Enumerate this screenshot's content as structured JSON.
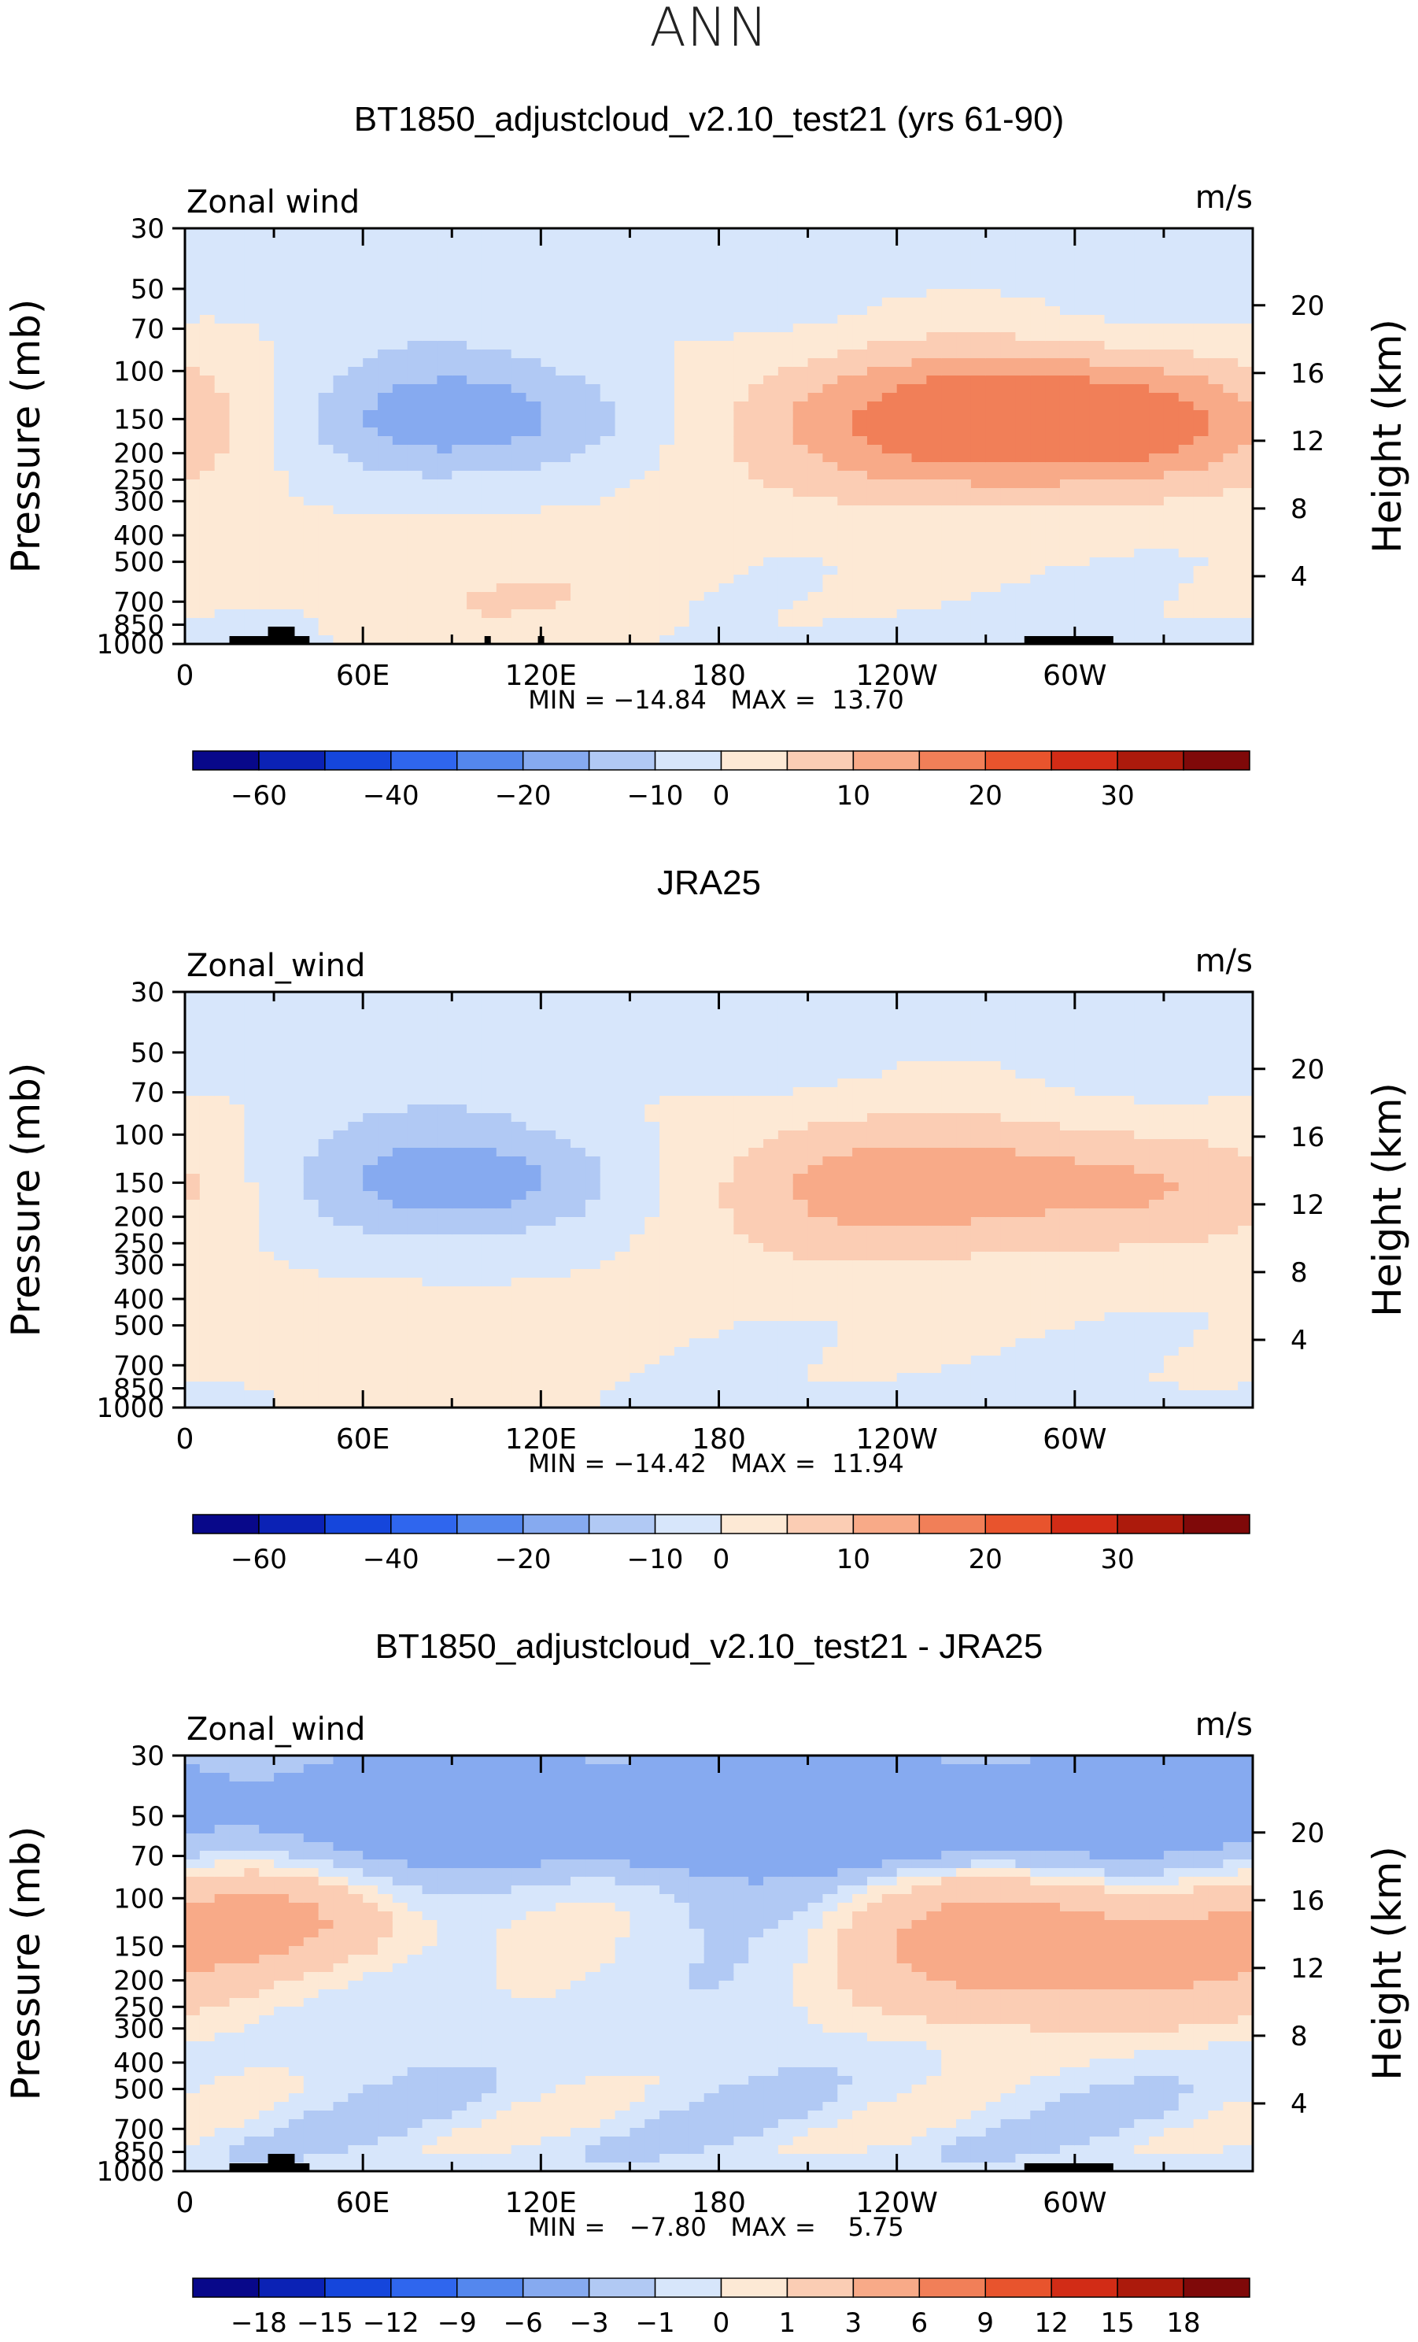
{
  "figure_title": "ANN",
  "panel_titles": [
    "BT1850_adjustcloud_v2.10_test21 (yrs 61-90)",
    "JRA25",
    "BT1850_adjustcloud_v2.10_test21 - JRA25"
  ],
  "colors": {
    "abs_levels": [
      "#08088a",
      "#0b22b5",
      "#1546dc",
      "#2f66ee",
      "#5487ee",
      "#86aaf0",
      "#b1c9f4",
      "#d7e6fb",
      "#fde9d5",
      "#fbcdb4",
      "#f8aa88",
      "#f17f58",
      "#e8542d",
      "#d22c16",
      "#ac1a0c",
      "#7f0909"
    ],
    "diff_levels": [
      "#08088a",
      "#0b22b5",
      "#1546dc",
      "#2f66ee",
      "#5487ee",
      "#86aaf0",
      "#b1c9f4",
      "#d7e6fb",
      "#fde9d5",
      "#fbcdb4",
      "#f8aa88",
      "#f17f58",
      "#e8542d",
      "#d22c16",
      "#ac1a0c",
      "#7f0909"
    ],
    "topography": "#000000"
  },
  "chart_data": [
    {
      "type": "heatmap",
      "title": "BT1850_adjustcloud_v2.10_test21 (yrs 61-90)",
      "variable_label": "Zonal wind",
      "units": "m/s",
      "ylabel": "Pressure (mb)",
      "y2label": "Height (km)",
      "x_ticks": [
        "0",
        "60E",
        "120E",
        "180",
        "120W",
        "60W"
      ],
      "x_range": [
        0,
        360
      ],
      "y_ticks": [
        "30",
        "50",
        "70",
        "100",
        "150",
        "200",
        "250",
        "300",
        "400",
        "500",
        "700",
        "850",
        "1000"
      ],
      "y2_ticks": [
        "20",
        "16",
        "12",
        "8",
        "4"
      ],
      "ylim": [
        1000,
        30
      ],
      "min_max_label": "MIN = −14.84   MAX =  13.70",
      "min": -14.84,
      "max": 13.7,
      "colorbar_labels": [
        "−60",
        "−40",
        "−20",
        "−10",
        "0",
        "10",
        "20",
        "30"
      ],
      "colorbar_label_slots": [
        1,
        3,
        5,
        7,
        8,
        10,
        12,
        14
      ],
      "features": [
        {
          "kind": "jet",
          "lon": 250,
          "p": 150,
          "peak": 13.7,
          "sx": 65,
          "sy": 55
        },
        {
          "kind": "jet",
          "lon": 313,
          "p": 150,
          "peak": 13.2,
          "sx": 45,
          "sy": 45
        },
        {
          "kind": "easterly",
          "lon": 100,
          "p": 150,
          "peak": -14.84,
          "sx": 50,
          "sy": 45
        },
        {
          "kind": "low_level_westerly",
          "lon": 105,
          "p": 700,
          "peak": 5,
          "sx": 45,
          "sy": 45
        }
      ]
    },
    {
      "type": "heatmap",
      "title": "JRA25",
      "variable_label": "Zonal_wind",
      "units": "m/s",
      "ylabel": "Pressure (mb)",
      "y2label": "Height (km)",
      "x_ticks": [
        "0",
        "60E",
        "120E",
        "180",
        "120W",
        "60W"
      ],
      "x_range": [
        0,
        360
      ],
      "y_ticks": [
        "30",
        "50",
        "70",
        "100",
        "150",
        "200",
        "250",
        "300",
        "400",
        "500",
        "700",
        "850",
        "1000"
      ],
      "y2_ticks": [
        "20",
        "16",
        "12",
        "8",
        "4"
      ],
      "ylim": [
        1000,
        30
      ],
      "min_max_label": "MIN = −14.42   MAX =  11.94",
      "min": -14.42,
      "max": 11.94,
      "colorbar_labels": [
        "−60",
        "−40",
        "−20",
        "−10",
        "0",
        "10",
        "20",
        "30"
      ],
      "colorbar_label_slots": [
        1,
        3,
        5,
        7,
        8,
        10,
        12,
        14
      ],
      "features": [
        {
          "kind": "jet",
          "lon": 225,
          "p": 150,
          "peak": 11.94,
          "sx": 55,
          "sy": 55
        },
        {
          "kind": "jet",
          "lon": 325,
          "p": 150,
          "peak": 8.5,
          "sx": 38,
          "sy": 45
        },
        {
          "kind": "easterly",
          "lon": 100,
          "p": 150,
          "peak": -14.42,
          "sx": 50,
          "sy": 45
        },
        {
          "kind": "low_level_westerly",
          "lon": 85,
          "p": 750,
          "peak": 4.5,
          "sx": 45,
          "sy": 45
        }
      ]
    },
    {
      "type": "heatmap",
      "title": "BT1850_adjustcloud_v2.10_test21 - JRA25",
      "variable_label": "Zonal_wind",
      "units": "m/s",
      "ylabel": "Pressure (mb)",
      "y2label": "Height (km)",
      "x_ticks": [
        "0",
        "60E",
        "120E",
        "180",
        "120W",
        "60W"
      ],
      "x_range": [
        0,
        360
      ],
      "y_ticks": [
        "30",
        "50",
        "70",
        "100",
        "150",
        "200",
        "250",
        "300",
        "400",
        "500",
        "700",
        "850",
        "1000"
      ],
      "y2_ticks": [
        "20",
        "16",
        "12",
        "8",
        "4"
      ],
      "ylim": [
        1000,
        30
      ],
      "min_max_label": "MIN =   −7.80   MAX =    5.75",
      "min": -7.8,
      "max": 5.75,
      "colorbar_labels": [
        "−18",
        "−15",
        "−12",
        "−9",
        "−6",
        "−3",
        "−1",
        "0",
        "1",
        "3",
        "6",
        "9",
        "12",
        "15",
        "18"
      ],
      "colorbar_label_slots": [
        1,
        2,
        3,
        4,
        5,
        6,
        7,
        8,
        9,
        10,
        11,
        12,
        13,
        14,
        15
      ],
      "features": [
        {
          "kind": "stratospheric_easterly_bias",
          "lon": 190,
          "p": 50,
          "peak": -7.8,
          "sx": 75,
          "sy": 30
        },
        {
          "kind": "westerly_bias",
          "lon": 300,
          "p": 150,
          "peak": 5.75,
          "sx": 50,
          "sy": 55
        },
        {
          "kind": "westerly_bias",
          "lon": 45,
          "p": 120,
          "peak": 3.5,
          "sx": 30,
          "sy": 40
        }
      ]
    }
  ]
}
